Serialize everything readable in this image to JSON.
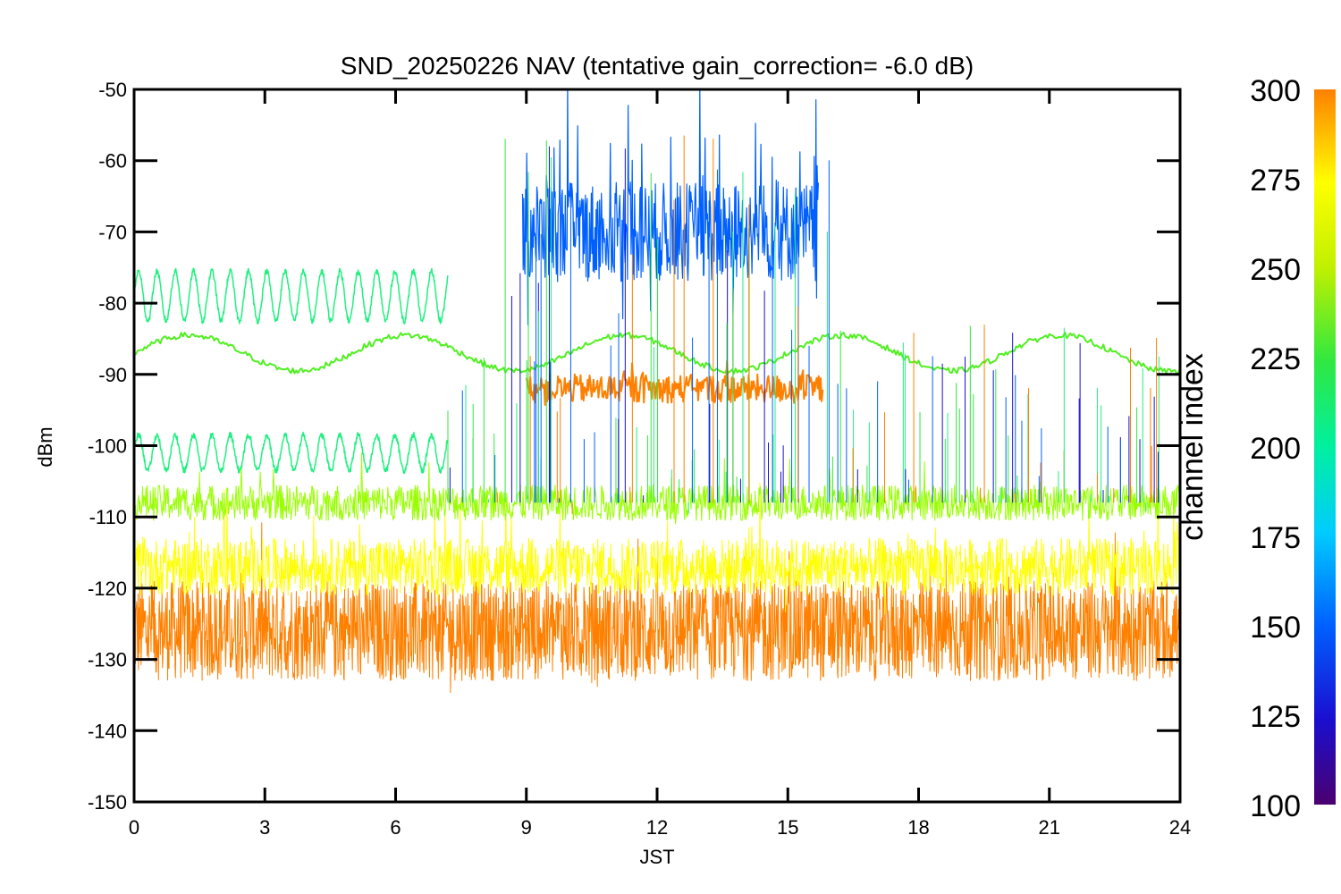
{
  "chart_data": {
    "type": "line",
    "title": "SND_20250226 NAV (tentative gain_correction= -6.0 dB)",
    "xlabel": "JST",
    "ylabel": "dBm",
    "xlim": [
      0,
      24
    ],
    "ylim": [
      -150,
      -50
    ],
    "x_ticks": [
      "0",
      "3",
      "6",
      "9",
      "12",
      "15",
      "18",
      "21",
      "24"
    ],
    "y_ticks": [
      "-50",
      "-60",
      "-70",
      "-80",
      "-90",
      "-100",
      "-110",
      "-120",
      "-130",
      "-140",
      "-150"
    ],
    "grid": false,
    "colorbar": {
      "title": "channel index",
      "range": [
        100,
        300
      ],
      "tick_labels": [
        "300",
        "275",
        "250",
        "225",
        "200",
        "175",
        "150",
        "125",
        "100"
      ],
      "colormap": "rainbow",
      "colors": [
        "#4b0070",
        "#1a0fd0",
        "#0060ff",
        "#00ccff",
        "#00f0a0",
        "#30e840",
        "#c0f000",
        "#ffff00",
        "#ff8000"
      ]
    },
    "series": [
      {
        "channel": 290,
        "color": "#ff8000",
        "description_level_dBm": -126,
        "x_range": [
          0,
          24
        ]
      },
      {
        "channel": 270,
        "color": "#ffff00",
        "description_level_dBm": -117,
        "x_range": [
          0,
          24
        ]
      },
      {
        "channel": 250,
        "color": "#99ff00",
        "description_level_dBm": -108,
        "x_range": [
          0,
          24
        ]
      },
      {
        "channel": 240,
        "color": "#50f020",
        "description_level_dBm": -87,
        "x_range": [
          0,
          24
        ]
      },
      {
        "channel": 210,
        "color": "#20f080",
        "description_level_dBm": -79,
        "x_range": [
          0,
          7.2
        ]
      },
      {
        "channel": 210,
        "color": "#20f080",
        "description_level_dBm": -101,
        "x_range": [
          0,
          7.2
        ]
      },
      {
        "channel": 150,
        "color": "#0060ff",
        "description_level_dBm": -70,
        "x_range": [
          8.9,
          15.7
        ]
      },
      {
        "channel": 285,
        "color": "#ff8000",
        "description_level_dBm": -92,
        "x_range": [
          9.0,
          15.8
        ]
      }
    ]
  }
}
